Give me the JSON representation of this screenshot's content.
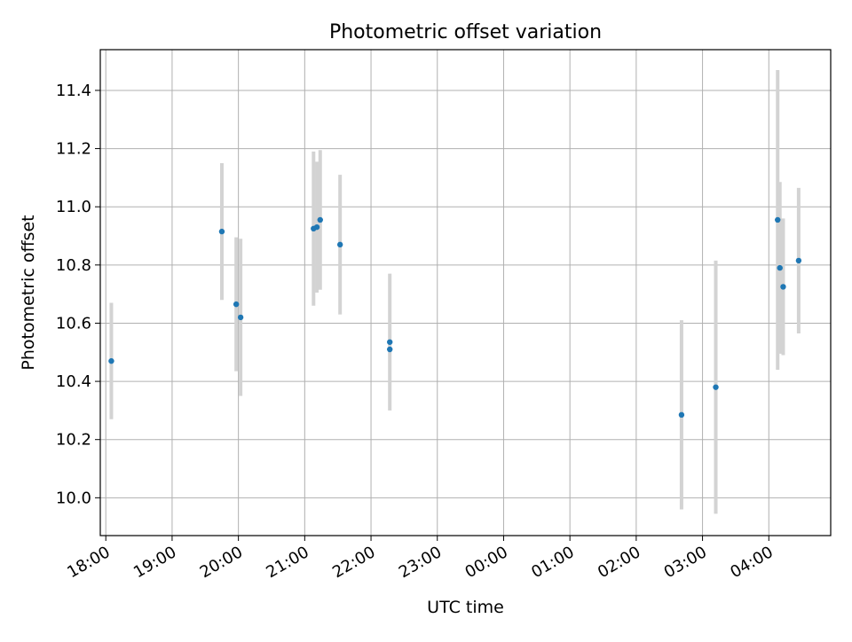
{
  "chart_data": {
    "type": "scatter",
    "title": "Photometric offset variation",
    "xlabel": "UTC time",
    "ylabel": "Photometric offset",
    "grid": true,
    "legend": "none",
    "x_unit": "UTC time of night",
    "xlim": [
      "17:55",
      "04:56"
    ],
    "ylim": [
      9.87,
      11.54
    ],
    "x_ticks": [
      "18:00",
      "19:00",
      "20:00",
      "21:00",
      "22:00",
      "23:00",
      "00:00",
      "01:00",
      "02:00",
      "03:00",
      "04:00"
    ],
    "y_ticks": [
      "10.0",
      "10.2",
      "10.4",
      "10.6",
      "10.8",
      "11.0",
      "11.2",
      "11.4"
    ],
    "colors": {
      "point": "#1f77b4",
      "errorbar": "#d3d3d3",
      "grid": "#b0b0b0"
    },
    "points": [
      {
        "x": "18:05",
        "y": 10.47,
        "err": 0.2
      },
      {
        "x": "19:45",
        "y": 10.915,
        "err": 0.235
      },
      {
        "x": "19:58",
        "y": 10.665,
        "err": 0.23
      },
      {
        "x": "20:02",
        "y": 10.62,
        "err": 0.27
      },
      {
        "x": "21:08",
        "y": 10.925,
        "err": 0.265
      },
      {
        "x": "21:11",
        "y": 10.93,
        "err": 0.225
      },
      {
        "x": "21:14",
        "y": 10.955,
        "err": 0.24
      },
      {
        "x": "21:32",
        "y": 10.87,
        "err": 0.24
      },
      {
        "x": "22:17",
        "y": 10.535,
        "err": 0.235
      },
      {
        "x": "22:17",
        "y": 10.51,
        "err": 0.0
      },
      {
        "x": "02:41",
        "y": 10.285,
        "err": 0.325
      },
      {
        "x": "03:12",
        "y": 10.38,
        "err": 0.435
      },
      {
        "x": "04:08",
        "y": 10.955,
        "err": 0.515
      },
      {
        "x": "04:10",
        "y": 10.79,
        "err": 0.295
      },
      {
        "x": "04:13",
        "y": 10.725,
        "err": 0.235
      },
      {
        "x": "04:27",
        "y": 10.815,
        "err": 0.25
      }
    ]
  }
}
